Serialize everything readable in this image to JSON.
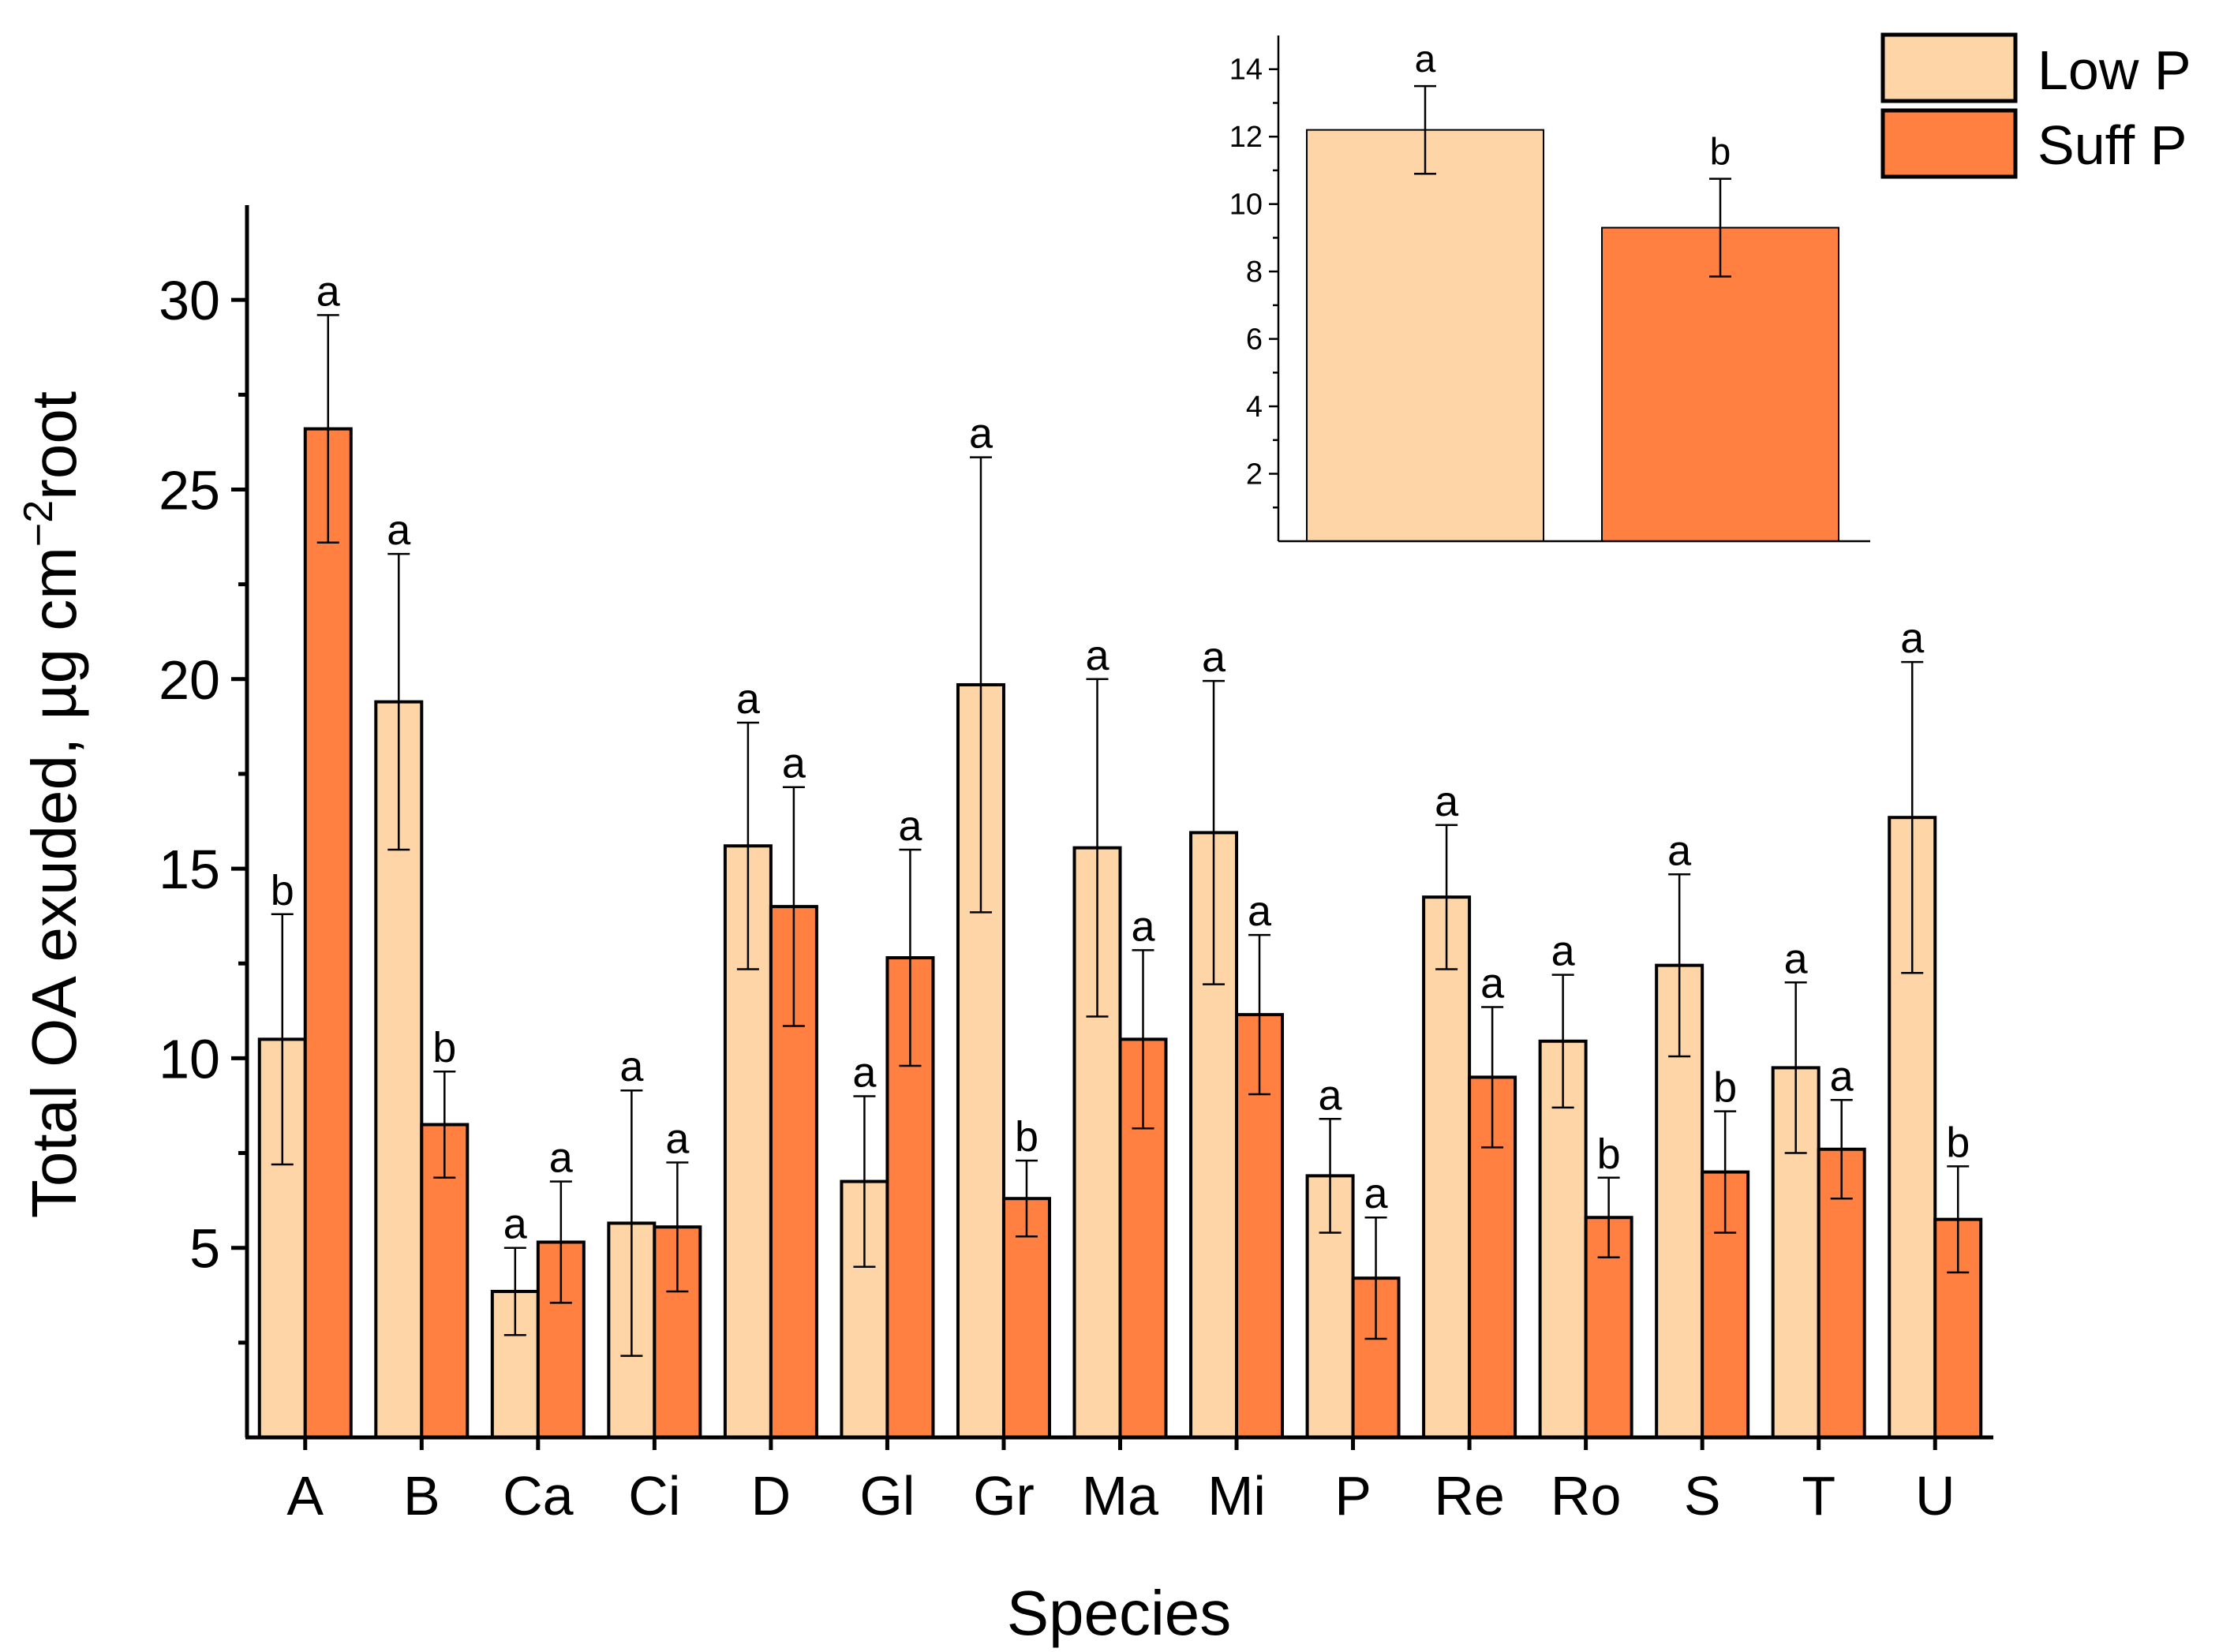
{
  "colors": {
    "low_p": "#FDD5A7",
    "suff_p": "#FF8040",
    "axis": "#000000"
  },
  "chart_data": [
    {
      "type": "bar",
      "title": "",
      "xlabel": "Species",
      "ylabel": "Total OA exuded, µg cm",
      "ylabel_superscript": "−2",
      "ylabel_suffix": "root",
      "ylim": [
        0,
        32.5
      ],
      "yticks": [
        5,
        10,
        15,
        20,
        25,
        30
      ],
      "categories": [
        "A",
        "B",
        "Ca",
        "Ci",
        "D",
        "Gl",
        "Gr",
        "Ma",
        "Mi",
        "P",
        "Re",
        "Ro",
        "S",
        "T",
        "U"
      ],
      "series": [
        {
          "name": "Low P",
          "values": [
            10.5,
            19.4,
            3.85,
            5.65,
            15.6,
            6.75,
            19.85,
            15.55,
            15.95,
            6.9,
            14.25,
            10.45,
            12.45,
            9.75,
            16.35
          ],
          "errors": [
            3.3,
            3.9,
            1.15,
            3.5,
            3.25,
            2.25,
            6.0,
            4.45,
            4.0,
            1.5,
            1.9,
            1.75,
            2.4,
            2.25,
            4.1
          ],
          "letters": [
            "b",
            "a",
            "a",
            "a",
            "a",
            "a",
            "a",
            "a",
            "a",
            "a",
            "a",
            "a",
            "a",
            "a",
            "a"
          ]
        },
        {
          "name": "Suff P",
          "values": [
            26.6,
            8.25,
            5.15,
            5.55,
            14.0,
            12.65,
            6.3,
            10.5,
            11.15,
            4.2,
            9.5,
            5.8,
            7.0,
            7.6,
            5.75
          ],
          "errors": [
            3.0,
            1.4,
            1.6,
            1.7,
            3.15,
            2.85,
            1.0,
            2.35,
            2.1,
            1.6,
            1.85,
            1.05,
            1.6,
            1.3,
            1.4
          ],
          "letters": [
            "a",
            "b",
            "a",
            "a",
            "a",
            "a",
            "b",
            "a",
            "a",
            "a",
            "a",
            "b",
            "b",
            "a",
            "b"
          ]
        }
      ],
      "legend": {
        "position": "top-right",
        "entries": [
          "Low P",
          "Suff P"
        ]
      }
    },
    {
      "type": "bar",
      "title": "",
      "xlabel": "",
      "ylabel": "",
      "ylim": [
        0,
        15
      ],
      "yticks": [
        2,
        4,
        6,
        8,
        10,
        12,
        14
      ],
      "categories": [
        "Low P",
        "Suff P"
      ],
      "values": [
        12.2,
        9.3
      ],
      "errors": [
        1.3,
        1.45
      ],
      "letters": [
        "a",
        "b"
      ]
    }
  ]
}
